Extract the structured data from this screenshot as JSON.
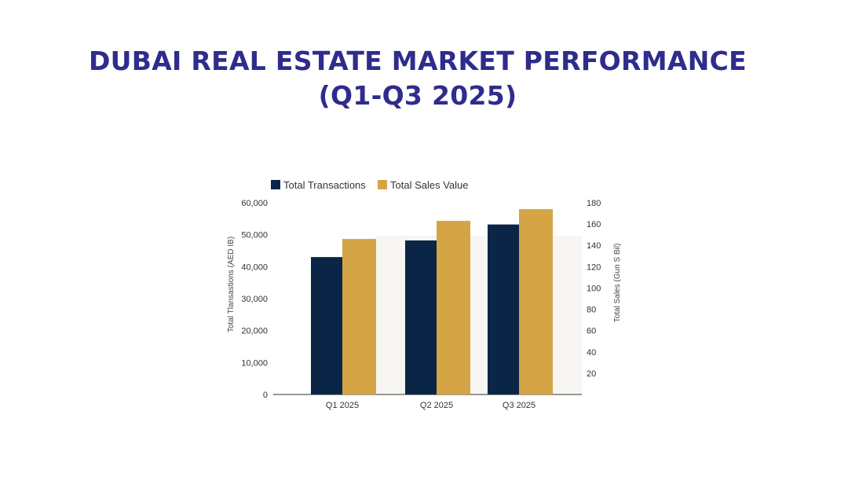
{
  "page": {
    "title_line1": "DUBAI REAL ESTATE MARKET PERFORMANCE",
    "title_line2": "(Q1-Q3 2025)"
  },
  "chart_data": {
    "type": "bar",
    "categories": [
      "Q1 2025",
      "Q2 2025",
      "Q3 2025"
    ],
    "series": [
      {
        "name": "Total Transactions",
        "axis": "left",
        "color": "#0b2547",
        "values": [
          43000,
          48200,
          53200
        ]
      },
      {
        "name": "Total Sales Value",
        "axis": "right",
        "color": "#d4a445",
        "values": [
          146,
          163,
          174
        ]
      }
    ],
    "ylabel": "Total Tlansastions (AED IB)",
    "y2label": "Total Sales (Gun S Bil)",
    "ylim": [
      0,
      60000
    ],
    "y2lim": [
      0,
      180
    ],
    "yticks": [
      "0",
      "10,000",
      "20,000",
      "30,000",
      "40,000",
      "50,000",
      "60,000"
    ],
    "y2ticks": [
      "20",
      "40",
      "60",
      "80",
      "100",
      "120",
      "140",
      "160",
      "180"
    ],
    "legend_position": "top-left",
    "grid": false
  }
}
